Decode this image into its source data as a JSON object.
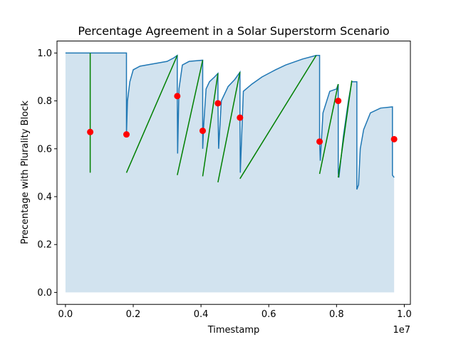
{
  "chart_data": {
    "type": "line",
    "title": "Percentage Agreement in a Solar Superstorm Scenario",
    "xlabel": "Timestamp",
    "ylabel": "Precentage with Plurality Block",
    "x_offset_label": "1e7",
    "xlim": [
      -250000,
      10180000
    ],
    "ylim": [
      -0.05,
      1.05
    ],
    "x_ticks": [
      0,
      2000000,
      4000000,
      6000000,
      8000000,
      10000000
    ],
    "x_tick_labels": [
      "0.0",
      "0.2",
      "0.4",
      "0.6",
      "0.8",
      "1.0"
    ],
    "y_ticks": [
      0.0,
      0.2,
      0.4,
      0.6,
      0.8,
      1.0
    ],
    "y_tick_labels": [
      "0.0",
      "0.2",
      "0.4",
      "0.6",
      "0.8",
      "1.0"
    ],
    "colors": {
      "line": "#1f77b4",
      "fill": "#d2e3ef",
      "segments": "#008000",
      "markers": "#ff0000"
    },
    "series": [
      {
        "points": [
          [
            0,
            1.0
          ],
          [
            1800000,
            1.0
          ],
          [
            1800000,
            0.66
          ],
          [
            1830000,
            0.8
          ],
          [
            1900000,
            0.88
          ],
          [
            2000000,
            0.93
          ],
          [
            2200000,
            0.945
          ],
          [
            2600000,
            0.955
          ],
          [
            3000000,
            0.965
          ],
          [
            3200000,
            0.98
          ],
          [
            3300000,
            0.99
          ],
          [
            3300000,
            0.82
          ],
          [
            3310000,
            0.58
          ],
          [
            3350000,
            0.85
          ],
          [
            3450000,
            0.95
          ],
          [
            3650000,
            0.965
          ],
          [
            4050000,
            0.97
          ],
          [
            4050000,
            0.6
          ],
          [
            4080000,
            0.7
          ],
          [
            4150000,
            0.85
          ],
          [
            4250000,
            0.88
          ],
          [
            4400000,
            0.9
          ],
          [
            4500000,
            0.915
          ],
          [
            4500000,
            0.79
          ],
          [
            4520000,
            0.6
          ],
          [
            4600000,
            0.8
          ],
          [
            4800000,
            0.86
          ],
          [
            5000000,
            0.89
          ],
          [
            5150000,
            0.92
          ],
          [
            5150000,
            0.73
          ],
          [
            5160000,
            0.5
          ],
          [
            5250000,
            0.84
          ],
          [
            5500000,
            0.87
          ],
          [
            5800000,
            0.9
          ],
          [
            6200000,
            0.93
          ],
          [
            6500000,
            0.95
          ],
          [
            7000000,
            0.975
          ],
          [
            7400000,
            0.99
          ],
          [
            7500000,
            0.99
          ],
          [
            7500000,
            0.63
          ],
          [
            7520000,
            0.55
          ],
          [
            7600000,
            0.75
          ],
          [
            7800000,
            0.84
          ],
          [
            8000000,
            0.85
          ],
          [
            8050000,
            0.87
          ],
          [
            8050000,
            0.5
          ],
          [
            8070000,
            0.48
          ],
          [
            8200000,
            0.65
          ],
          [
            8350000,
            0.8
          ],
          [
            8450000,
            0.88
          ],
          [
            8600000,
            0.88
          ],
          [
            8600000,
            0.43
          ],
          [
            8650000,
            0.45
          ],
          [
            8700000,
            0.6
          ],
          [
            8800000,
            0.68
          ],
          [
            9000000,
            0.75
          ],
          [
            9300000,
            0.77
          ],
          [
            9650000,
            0.775
          ],
          [
            9650000,
            0.49
          ],
          [
            9700000,
            0.48
          ]
        ]
      }
    ],
    "segments": [
      [
        [
          730000,
          0.5
        ],
        [
          730000,
          1.0
        ]
      ],
      [
        [
          1800000,
          0.5
        ],
        [
          3300000,
          0.99
        ]
      ],
      [
        [
          3300000,
          0.49
        ],
        [
          4050000,
          0.97
        ]
      ],
      [
        [
          4050000,
          0.485
        ],
        [
          4500000,
          0.915
        ]
      ],
      [
        [
          4500000,
          0.46
        ],
        [
          5150000,
          0.92
        ]
      ],
      [
        [
          5150000,
          0.475
        ],
        [
          7400000,
          0.99
        ]
      ],
      [
        [
          7500000,
          0.495
        ],
        [
          8050000,
          0.87
        ]
      ],
      [
        [
          8050000,
          0.48
        ],
        [
          8450000,
          0.885
        ]
      ]
    ],
    "markers": [
      [
        730000,
        0.67
      ],
      [
        1800000,
        0.66
      ],
      [
        3300000,
        0.82
      ],
      [
        4050000,
        0.675
      ],
      [
        4500000,
        0.79
      ],
      [
        5150000,
        0.73
      ],
      [
        7500000,
        0.63
      ],
      [
        8050000,
        0.8
      ],
      [
        9700000,
        0.64
      ]
    ]
  }
}
